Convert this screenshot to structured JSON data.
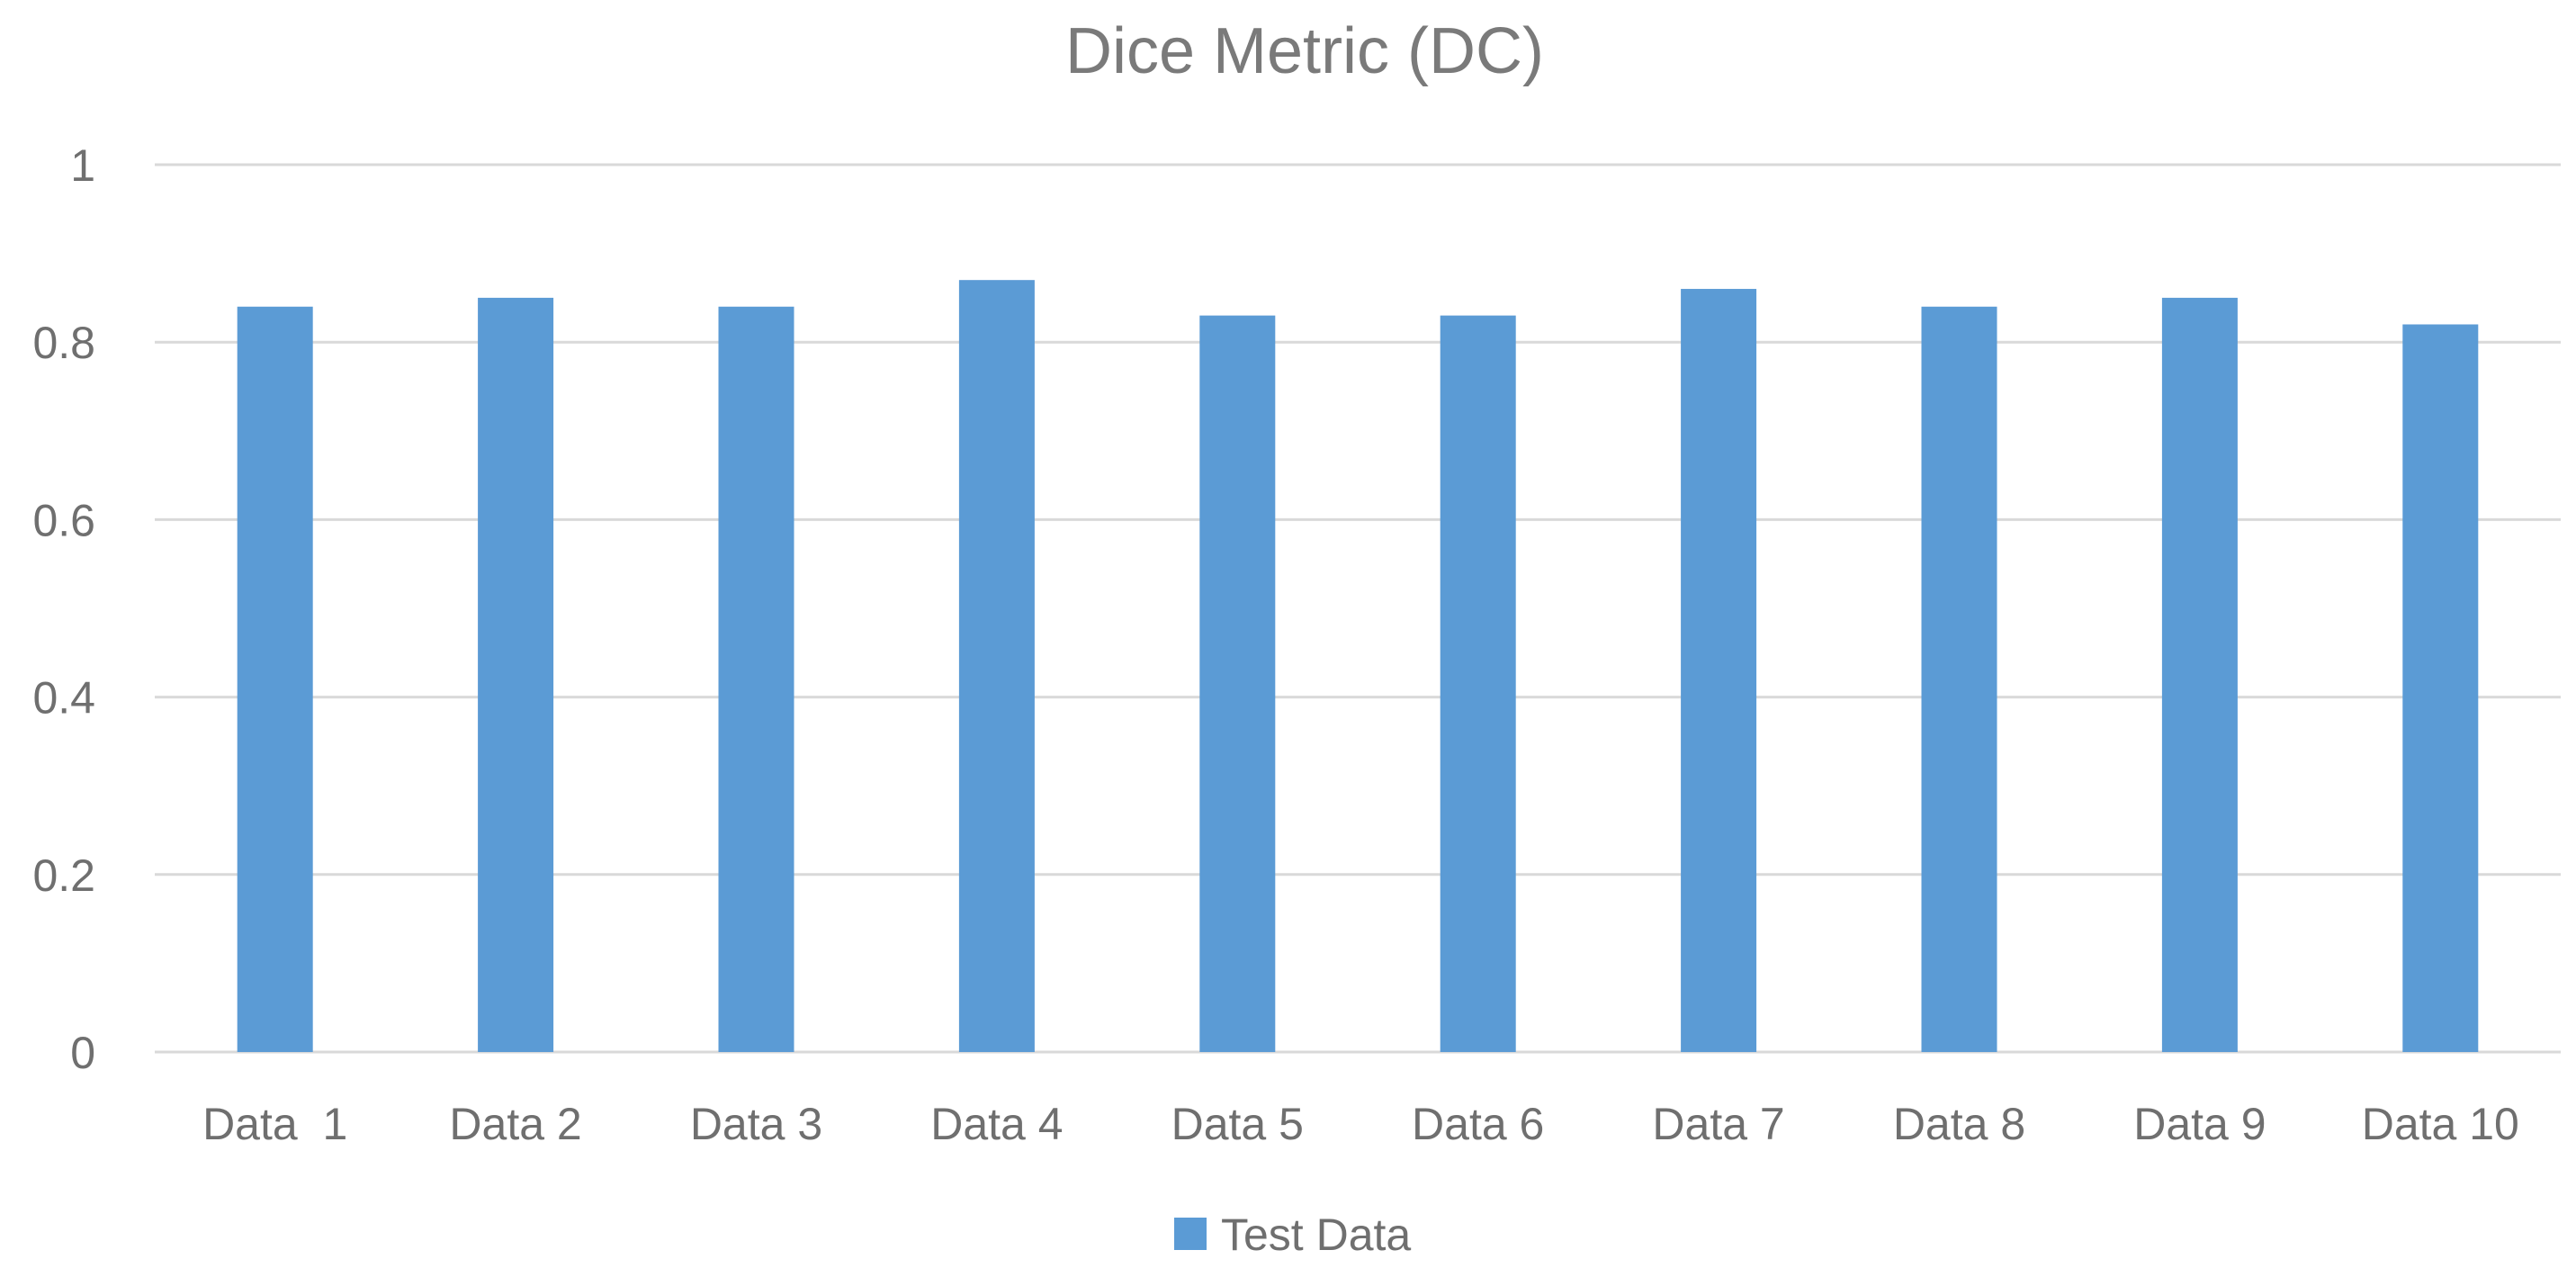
{
  "chart_data": {
    "type": "bar",
    "title": "Dice Metric (DC)",
    "xlabel": "",
    "ylabel": "",
    "categories": [
      "Data  1",
      "Data 2",
      "Data 3",
      "Data 4",
      "Data 5",
      "Data 6",
      "Data 7",
      "Data 8",
      "Data 9",
      "Data 10"
    ],
    "series": [
      {
        "name": "Test Data",
        "color": "#5b9bd5",
        "values": [
          0.84,
          0.85,
          0.84,
          0.87,
          0.83,
          0.83,
          0.86,
          0.84,
          0.85,
          0.82
        ]
      }
    ],
    "ylim": [
      0,
      1
    ],
    "yticks": [
      0,
      0.2,
      0.4,
      0.6,
      0.8,
      1
    ],
    "ytick_labels": [
      "0",
      "0.2",
      "0.4",
      "0.6",
      "0.8",
      "1"
    ],
    "grid": true,
    "legend_position": "bottom"
  }
}
